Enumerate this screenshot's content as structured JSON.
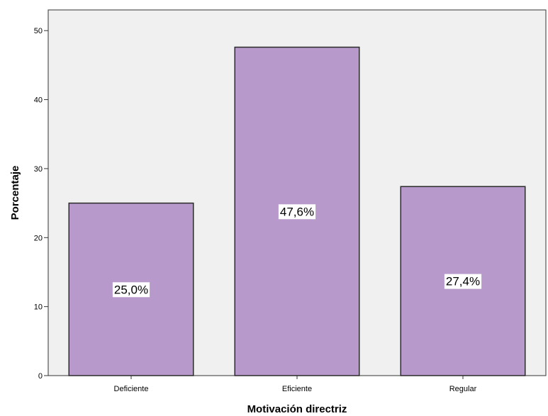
{
  "chart_data": {
    "type": "bar",
    "title": "",
    "xlabel": "Motivación directriz",
    "ylabel": "Porcentaje",
    "categories": [
      "Deficiente",
      "Eficiente",
      "Regular"
    ],
    "values": [
      25.0,
      47.6,
      27.4
    ],
    "data_labels": [
      "25,0%",
      "47,6%",
      "27,4%"
    ],
    "yticks": [
      0,
      10,
      20,
      30,
      40,
      50
    ],
    "ylim": [
      0,
      53
    ],
    "grid": false,
    "colors": {
      "bar_fill": "#b79acb",
      "bar_stroke": "#2b2b2b",
      "plot_background": "#f0f0f0",
      "axis": "#333333"
    }
  }
}
